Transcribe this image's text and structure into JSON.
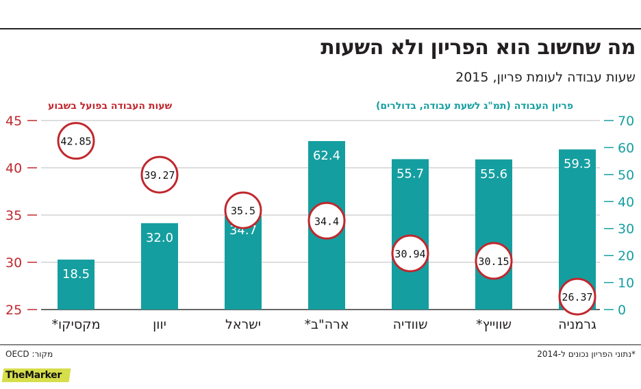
{
  "header": {
    "title": "מה שחשוב הוא הפריון ולא השעות",
    "subtitle": "שעות עבודה לעומת פריון, 2015"
  },
  "legend": {
    "left_axis_title": "שעות העבודה בפועל בשבוע",
    "right_axis_title": "פריון העבודה (תמ\"ג לשעת עבודה, בדולרים)"
  },
  "footer": {
    "footnote": "*נתוני הפריון נכונים ל-2014",
    "source": "מקור: OECD",
    "brand": "TheMarker"
  },
  "colors": {
    "bar": "#159ea0",
    "hours_circle": "#c0272d",
    "left_axis": "#c0272d",
    "right_axis": "#159ea0",
    "text": "#231f20"
  },
  "chart_data": {
    "type": "bar",
    "title": "מה שחשוב הוא הפריון ולא השעות",
    "subtitle": "שעות עבודה לעומת פריון, 2015",
    "categories": [
      "מקסיקו*",
      "יוון",
      "ישראל",
      "ארה\"ב*",
      "שוודיה",
      "שווייץ*",
      "גרמניה"
    ],
    "series": [
      {
        "name": "פריון העבודה (תמ\"ג לשעת עבודה, בדולרים)",
        "kind": "bar",
        "axis": "right",
        "values": [
          18.5,
          32.0,
          34.7,
          62.4,
          55.7,
          55.6,
          59.3
        ],
        "labels": [
          "18.5",
          "32.0",
          "34.7",
          "62.4",
          "55.7",
          "55.6",
          "59.3"
        ]
      },
      {
        "name": "שעות העבודה בפועל בשבוע",
        "kind": "circle-marker",
        "axis": "left",
        "values": [
          42.85,
          39.27,
          35.5,
          34.4,
          30.94,
          30.15,
          26.37
        ],
        "labels": [
          "42.85",
          "39.27",
          "35.5",
          "34.4",
          "30.94",
          "30.15",
          "26.37"
        ]
      }
    ],
    "left_axis": {
      "ylim": [
        25,
        45
      ],
      "ticks": [
        25,
        30,
        35,
        40,
        45
      ],
      "tick_labels": [
        "25",
        "30",
        "35",
        "40",
        "45"
      ]
    },
    "right_axis": {
      "ylim": [
        0,
        70
      ],
      "ticks": [
        0,
        10,
        20,
        30,
        40,
        50,
        60,
        70
      ],
      "tick_labels": [
        "0",
        "10",
        "20",
        "30",
        "40",
        "50",
        "60",
        "70"
      ]
    }
  }
}
